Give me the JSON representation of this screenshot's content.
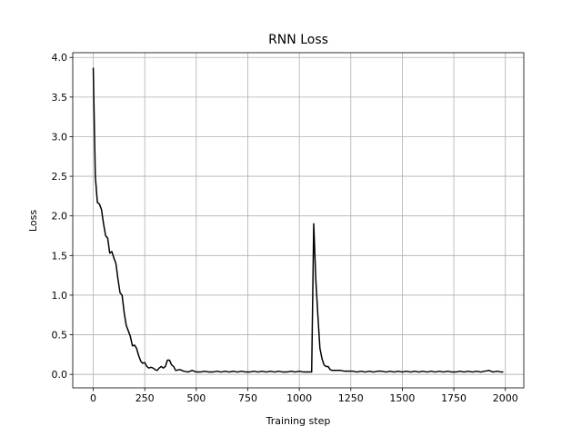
{
  "chart_data": {
    "type": "line",
    "title": "RNN Loss",
    "xlabel": "Training step",
    "ylabel": "Loss",
    "x": [
      0,
      10,
      20,
      30,
      40,
      50,
      60,
      70,
      80,
      90,
      100,
      110,
      120,
      130,
      140,
      150,
      160,
      170,
      180,
      190,
      200,
      210,
      220,
      230,
      240,
      250,
      260,
      270,
      280,
      290,
      300,
      310,
      320,
      330,
      340,
      350,
      360,
      370,
      380,
      390,
      400,
      420,
      440,
      460,
      480,
      500,
      520,
      540,
      560,
      580,
      600,
      620,
      640,
      660,
      680,
      700,
      720,
      740,
      760,
      780,
      800,
      820,
      840,
      860,
      880,
      900,
      920,
      940,
      960,
      980,
      1000,
      1020,
      1040,
      1060,
      1070,
      1080,
      1090,
      1100,
      1110,
      1120,
      1130,
      1140,
      1150,
      1160,
      1180,
      1200,
      1220,
      1240,
      1260,
      1280,
      1300,
      1320,
      1340,
      1360,
      1380,
      1400,
      1420,
      1440,
      1460,
      1480,
      1500,
      1520,
      1540,
      1560,
      1580,
      1600,
      1620,
      1640,
      1660,
      1680,
      1700,
      1720,
      1740,
      1760,
      1780,
      1800,
      1820,
      1840,
      1860,
      1880,
      1900,
      1920,
      1940,
      1960,
      1980,
      1990
    ],
    "series": [
      {
        "name": "loss",
        "color": "#000000",
        "values": [
          3.87,
          2.5,
          2.17,
          2.15,
          2.08,
          1.9,
          1.75,
          1.72,
          1.53,
          1.55,
          1.47,
          1.4,
          1.2,
          1.03,
          1.0,
          0.78,
          0.62,
          0.55,
          0.48,
          0.36,
          0.37,
          0.33,
          0.24,
          0.17,
          0.14,
          0.15,
          0.1,
          0.08,
          0.09,
          0.08,
          0.06,
          0.05,
          0.08,
          0.1,
          0.08,
          0.1,
          0.18,
          0.18,
          0.12,
          0.1,
          0.05,
          0.06,
          0.04,
          0.03,
          0.05,
          0.03,
          0.03,
          0.04,
          0.03,
          0.03,
          0.04,
          0.03,
          0.04,
          0.03,
          0.04,
          0.03,
          0.04,
          0.03,
          0.03,
          0.04,
          0.03,
          0.04,
          0.03,
          0.04,
          0.03,
          0.04,
          0.03,
          0.03,
          0.04,
          0.03,
          0.04,
          0.03,
          0.03,
          0.03,
          1.9,
          1.2,
          0.75,
          0.33,
          0.2,
          0.12,
          0.1,
          0.1,
          0.06,
          0.05,
          0.05,
          0.05,
          0.04,
          0.04,
          0.04,
          0.03,
          0.04,
          0.03,
          0.04,
          0.03,
          0.04,
          0.04,
          0.03,
          0.04,
          0.03,
          0.04,
          0.03,
          0.04,
          0.03,
          0.04,
          0.03,
          0.04,
          0.03,
          0.04,
          0.03,
          0.04,
          0.03,
          0.04,
          0.03,
          0.03,
          0.04,
          0.03,
          0.04,
          0.03,
          0.04,
          0.03,
          0.04,
          0.05,
          0.03,
          0.04,
          0.03,
          0.03
        ]
      }
    ],
    "xlim": [
      -99.5,
      2089.5
    ],
    "ylim": [
      -0.17,
      4.06
    ],
    "xticks": [
      0,
      250,
      500,
      750,
      1000,
      1250,
      1500,
      1750,
      2000
    ],
    "yticks": [
      {
        "value": 0,
        "label": "0.0"
      },
      {
        "value": 0.5,
        "label": "0.5"
      },
      {
        "value": 1,
        "label": "1.0"
      },
      {
        "value": 1.5,
        "label": "1.5"
      },
      {
        "value": 2,
        "label": "2.0"
      },
      {
        "value": 2.5,
        "label": "2.5"
      },
      {
        "value": 3,
        "label": "3.0"
      },
      {
        "value": 3.5,
        "label": "3.5"
      },
      {
        "value": 4,
        "label": "4.0"
      }
    ],
    "grid": true
  }
}
